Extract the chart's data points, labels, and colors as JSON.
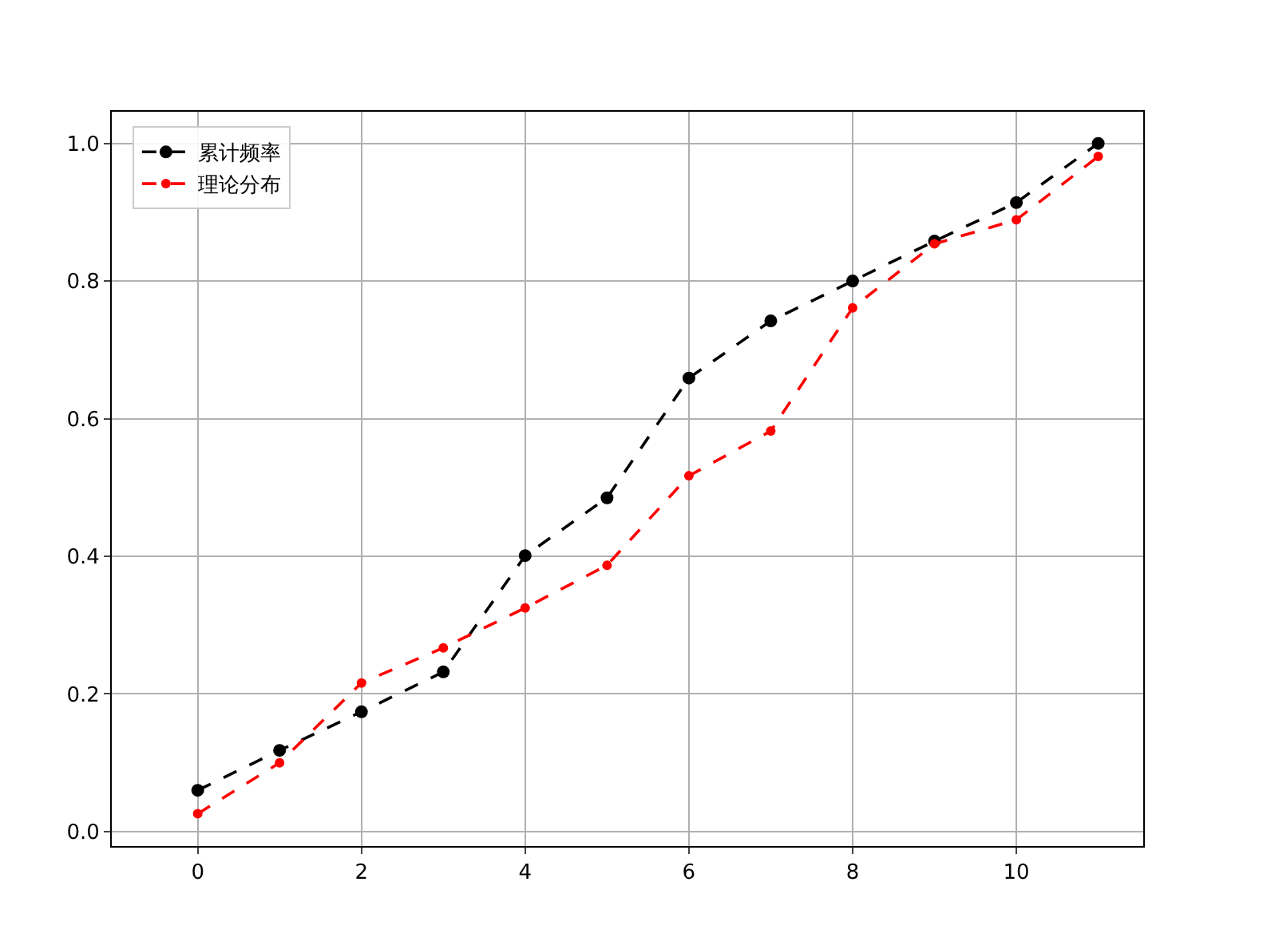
{
  "chart_data": {
    "type": "line",
    "x": [
      0,
      1,
      2,
      3,
      4,
      5,
      6,
      7,
      8,
      9,
      10,
      11
    ],
    "series": [
      {
        "name": "累计频率",
        "color": "#000000",
        "values": [
          0.06,
          0.118,
          0.174,
          0.232,
          0.401,
          0.485,
          0.659,
          0.742,
          0.8,
          0.858,
          0.914,
          1.0
        ]
      },
      {
        "name": "理论分布",
        "color": "#ff0000",
        "values": [
          0.026,
          0.1,
          0.216,
          0.267,
          0.325,
          0.387,
          0.517,
          0.582,
          0.761,
          0.854,
          0.889,
          0.981
        ]
      }
    ],
    "xlim": [
      -1.05,
      11.55
    ],
    "ylim": [
      -0.021,
      1.046
    ],
    "xticks": [
      0,
      2,
      4,
      6,
      8,
      10
    ],
    "yticks": [
      {
        "value": 0,
        "label": "0.0"
      },
      {
        "value": 0.2,
        "label": "0.2"
      },
      {
        "value": 0.4,
        "label": "0.4"
      },
      {
        "value": 0.6,
        "label": "0.6"
      },
      {
        "value": 0.8,
        "label": "0.8"
      },
      {
        "value": 1,
        "label": "1.0"
      }
    ],
    "grid": true,
    "legend": "top left",
    "marker": "circle",
    "line_style": "dashed"
  }
}
